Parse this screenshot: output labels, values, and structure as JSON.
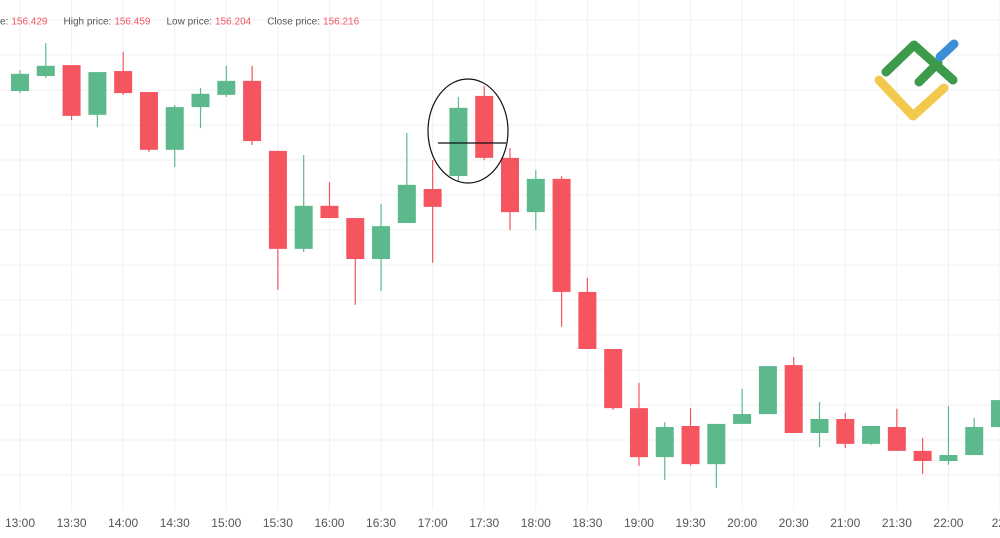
{
  "chart_data": {
    "type": "candlestick",
    "info": [
      {
        "label": "e:",
        "value": 156.429
      },
      {
        "label": "High price:",
        "value": 156.459
      },
      {
        "label": "Low price:",
        "value": 156.204
      },
      {
        "label": "Close price:",
        "value": 156.216
      }
    ],
    "categories": [
      "13:00",
      null,
      "13:30",
      null,
      "14:00",
      null,
      "14:30",
      null,
      "15:00",
      null,
      "15:30",
      null,
      "16:00",
      null,
      "16:30",
      null,
      "17:00",
      null,
      "17:30",
      null,
      "18:00",
      null,
      "18:30",
      null,
      "19:00",
      null,
      "19:30",
      null,
      "20:00",
      null,
      "20:30",
      null,
      "21:00",
      null,
      "21:30",
      null,
      "22:00",
      null,
      "22:"
    ],
    "open": [
      156.797,
      156.84,
      156.871,
      156.729,
      156.854,
      156.794,
      156.629,
      156.751,
      156.786,
      156.826,
      156.626,
      156.346,
      156.469,
      156.434,
      156.317,
      156.42,
      156.517,
      156.554,
      156.783,
      156.606,
      156.451,
      156.546,
      156.223,
      156.06,
      155.891,
      155.751,
      155.84,
      155.731,
      155.846,
      155.874,
      156.014,
      155.82,
      155.86,
      155.789,
      155.837,
      155.769,
      155.74,
      155.757,
      155.837
    ],
    "high": [
      156.857,
      156.934,
      156.871,
      156.851,
      156.909,
      156.794,
      156.757,
      156.806,
      156.869,
      156.869,
      156.626,
      156.614,
      156.537,
      156.434,
      156.474,
      156.677,
      156.6,
      156.78,
      156.811,
      156.634,
      156.571,
      156.554,
      156.263,
      156.06,
      155.963,
      155.851,
      155.891,
      155.846,
      155.946,
      156.011,
      156.037,
      155.909,
      155.877,
      155.84,
      155.889,
      155.806,
      155.897,
      155.863,
      155.914
    ],
    "low": [
      156.791,
      156.834,
      156.714,
      156.694,
      156.786,
      156.623,
      156.58,
      156.691,
      156.78,
      156.643,
      156.229,
      156.337,
      156.434,
      156.186,
      156.226,
      156.42,
      156.306,
      156.537,
      156.6,
      156.4,
      156.4,
      156.123,
      156.06,
      155.886,
      155.726,
      155.686,
      155.726,
      155.663,
      155.846,
      155.874,
      155.82,
      155.78,
      155.777,
      155.786,
      155.769,
      155.703,
      155.729,
      155.757,
      155.837
    ],
    "close": [
      156.846,
      156.869,
      156.726,
      156.851,
      156.791,
      156.629,
      156.751,
      156.789,
      156.826,
      156.654,
      156.346,
      156.469,
      156.434,
      156.317,
      156.411,
      156.529,
      156.466,
      156.749,
      156.606,
      156.451,
      156.546,
      156.223,
      156.06,
      155.891,
      155.751,
      155.837,
      155.731,
      155.846,
      155.874,
      156.011,
      155.82,
      155.86,
      155.789,
      155.84,
      155.769,
      155.74,
      155.757,
      155.837,
      155.914
    ],
    "up_color": "#5bb98c",
    "down_color": "#f4555f",
    "ylim": [
      155.6,
      157.057
    ]
  }
}
